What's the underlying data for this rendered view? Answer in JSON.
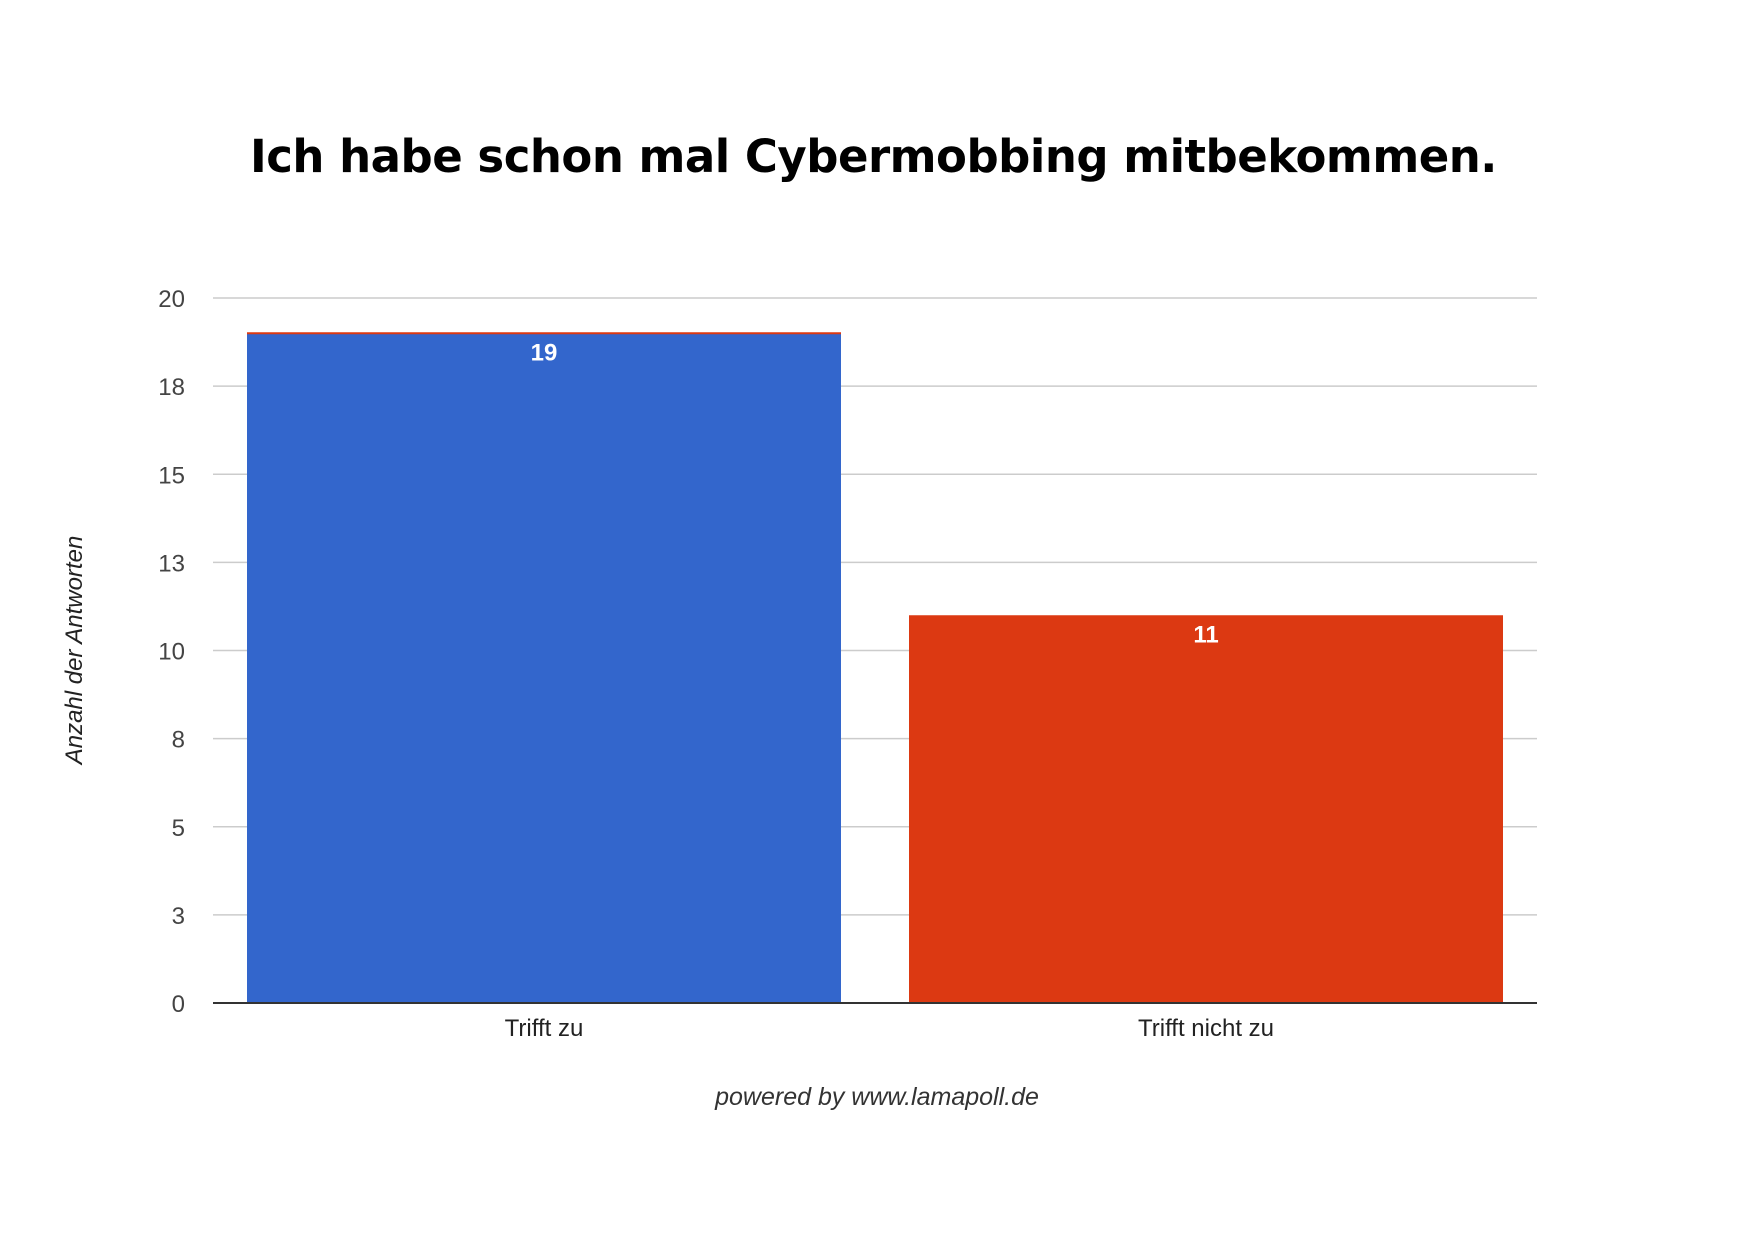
{
  "title": "Ich habe schon mal Cybermobbing mitbekommen.",
  "footer": "powered by www.lamapoll.de",
  "chart_data": {
    "type": "bar",
    "title": "Ich habe schon mal Cybermobbing mitbekommen.",
    "xlabel": "",
    "ylabel": "Anzahl der Antworten",
    "categories": [
      "Trifft zu",
      "Trifft nicht zu"
    ],
    "values": [
      19,
      11
    ],
    "colors": [
      "#3366CC",
      "#DC3912"
    ],
    "ylim": [
      0,
      20
    ],
    "y_ticks": [
      0,
      2.5,
      5,
      7.5,
      10,
      12.5,
      15,
      17.5,
      20
    ],
    "y_tick_labels": [
      "0",
      "3",
      "5",
      "8",
      "10",
      "13",
      "15",
      "18",
      "20"
    ],
    "data_labels": [
      "19",
      "11"
    ],
    "grid": true,
    "legend": "none",
    "top_accent_color": "#DC3912"
  }
}
